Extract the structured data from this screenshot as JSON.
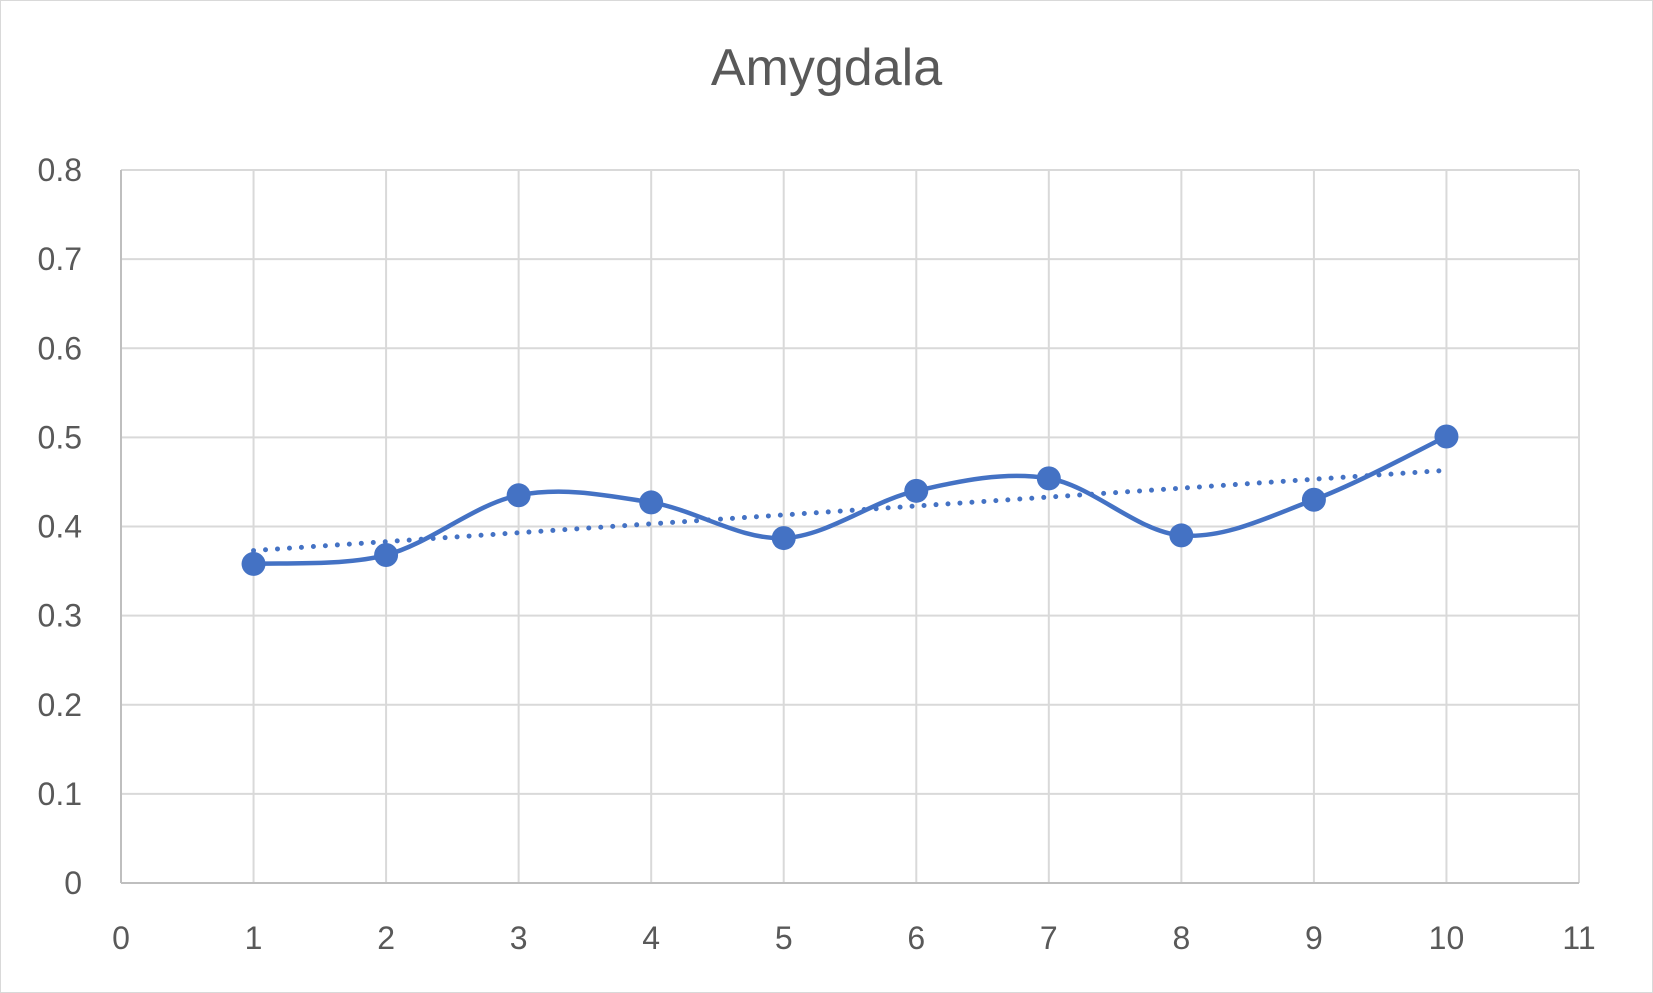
{
  "chart_data": {
    "type": "scatter",
    "title": "Amygdala",
    "xlabel": "",
    "ylabel": "",
    "xlim": [
      0,
      11
    ],
    "ylim": [
      0,
      0.8
    ],
    "x_ticks": [
      "0",
      "1",
      "2",
      "3",
      "4",
      "5",
      "6",
      "7",
      "8",
      "9",
      "10",
      "11"
    ],
    "y_ticks": [
      "0",
      "0.1",
      "0.2",
      "0.3",
      "0.4",
      "0.5",
      "0.6",
      "0.7",
      "0.8"
    ],
    "grid": true,
    "legend": "none",
    "series": [
      {
        "x": [
          1,
          2,
          3,
          4,
          5,
          6,
          7,
          8,
          9,
          10
        ],
        "y": [
          0.358,
          0.368,
          0.435,
          0.427,
          0.387,
          0.44,
          0.454,
          0.39,
          0.43,
          0.501
        ],
        "line_style": "smooth",
        "marker": "circle",
        "color": "#4472C4"
      }
    ],
    "trendline": {
      "type": "linear",
      "style": "dotted",
      "color": "#4472C4",
      "x": [
        1,
        10
      ],
      "y": [
        0.373,
        0.463
      ]
    }
  }
}
